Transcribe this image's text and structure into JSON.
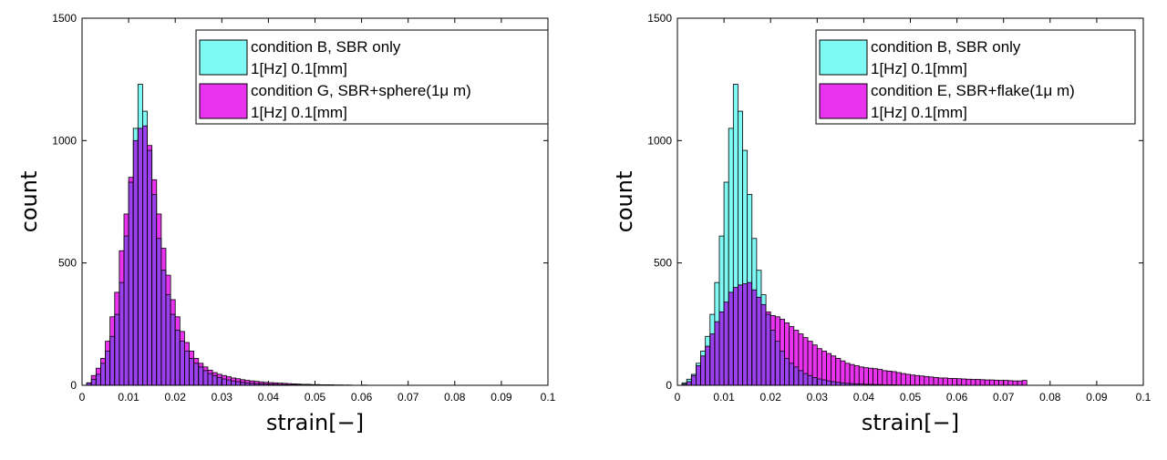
{
  "colors": {
    "series_a": "#7ff9f3",
    "series_b": "#ea33ee",
    "overlap": "#9c40ee",
    "edge": "#000000"
  },
  "chart_data": [
    {
      "type": "bar",
      "xlabel": "strain[−]",
      "ylabel": "count",
      "xlim": [
        0,
        0.1
      ],
      "ylim": [
        0,
        1500
      ],
      "xticks": [
        "0",
        "0.01",
        "0.02",
        "0.03",
        "0.04",
        "0.05",
        "0.06",
        "0.07",
        "0.08",
        "0.09",
        "0.1"
      ],
      "yticks": [
        "0",
        "500",
        "1000",
        "1500"
      ],
      "bin_width": 0.001,
      "legend_position": "top-right",
      "grid": false,
      "series": [
        {
          "name": "condition B, SBR only",
          "name_line2": "1[Hz] 0.1[mm]",
          "values": [
            0,
            10,
            25,
            45,
            90,
            140,
            200,
            290,
            420,
            610,
            830,
            1050,
            1230,
            1120,
            960,
            780,
            600,
            470,
            370,
            290,
            225,
            180,
            140,
            110,
            90,
            75,
            60,
            48,
            40,
            32,
            26,
            22,
            18,
            15,
            12,
            10,
            8,
            7,
            6,
            5,
            4,
            4,
            3,
            3,
            2,
            2,
            2,
            1,
            1,
            1,
            1,
            1,
            1,
            1,
            1,
            1,
            0,
            0,
            0,
            0,
            1
          ]
        },
        {
          "name": "condition G, SBR+sphere(1μ m)",
          "name_line2": "1[Hz] 0.1[mm]",
          "values": [
            0,
            10,
            40,
            70,
            110,
            180,
            280,
            380,
            550,
            700,
            850,
            1000,
            1050,
            1060,
            980,
            840,
            700,
            560,
            450,
            350,
            280,
            220,
            175,
            140,
            110,
            90,
            75,
            62,
            52,
            45,
            40,
            35,
            30,
            27,
            23,
            20,
            18,
            16,
            14,
            12,
            11,
            10,
            9,
            8,
            7,
            6,
            5,
            4,
            4,
            3,
            3,
            2,
            2,
            2,
            1,
            1,
            1,
            1,
            0,
            0,
            0
          ]
        }
      ]
    },
    {
      "type": "bar",
      "xlabel": "strain[−]",
      "ylabel": "count",
      "xlim": [
        0,
        0.1
      ],
      "ylim": [
        0,
        1500
      ],
      "xticks": [
        "0",
        "0.01",
        "0.02",
        "0.03",
        "0.04",
        "0.05",
        "0.06",
        "0.07",
        "0.08",
        "0.09",
        "0.1"
      ],
      "yticks": [
        "0",
        "500",
        "1000",
        "1500"
      ],
      "bin_width": 0.001,
      "legend_position": "top-right",
      "grid": false,
      "series": [
        {
          "name": "condition B, SBR only",
          "name_line2": "1[Hz] 0.1[mm]",
          "values": [
            0,
            10,
            25,
            45,
            90,
            140,
            200,
            290,
            420,
            610,
            830,
            1050,
            1230,
            1120,
            960,
            780,
            600,
            470,
            370,
            290,
            225,
            180,
            140,
            110,
            90,
            75,
            60,
            48,
            40,
            32,
            26,
            22,
            18,
            15,
            12,
            10,
            8,
            7,
            6,
            5,
            4,
            4,
            3,
            3,
            2,
            2,
            2,
            1,
            1,
            1,
            1,
            1,
            1,
            1,
            1,
            1,
            0,
            0,
            0,
            0,
            1,
            0,
            0,
            0,
            0,
            0,
            0,
            0,
            0,
            0,
            0,
            0,
            0,
            0,
            0
          ]
        },
        {
          "name": "condition E, SBR+flake(1μ m)",
          "name_line2": "1[Hz] 0.1[mm]",
          "values": [
            0,
            5,
            15,
            40,
            80,
            120,
            160,
            210,
            260,
            300,
            340,
            380,
            400,
            410,
            415,
            420,
            390,
            360,
            330,
            300,
            285,
            280,
            270,
            255,
            240,
            225,
            210,
            195,
            180,
            165,
            150,
            140,
            130,
            120,
            110,
            100,
            90,
            85,
            80,
            75,
            72,
            70,
            68,
            65,
            60,
            58,
            56,
            52,
            48,
            45,
            42,
            40,
            38,
            36,
            34,
            32,
            30,
            30,
            28,
            28,
            27,
            26,
            25,
            24,
            24,
            23,
            22,
            22,
            21,
            20,
            20,
            19,
            18,
            18,
            20
          ]
        }
      ]
    }
  ]
}
